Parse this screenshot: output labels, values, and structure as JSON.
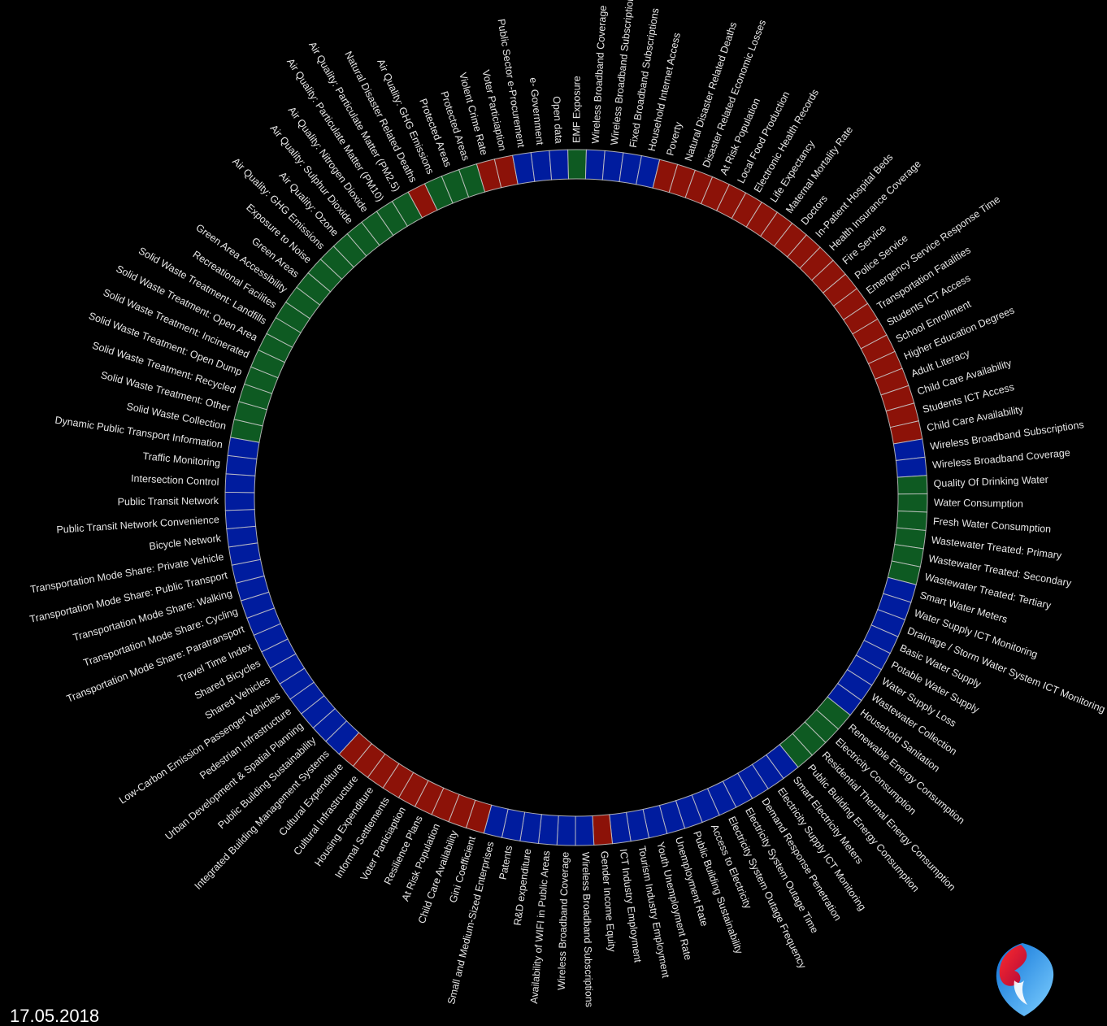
{
  "date": "17.05.2018",
  "colors": {
    "red": "#8c1208",
    "blue": "#001c9e",
    "green": "#0e5a22",
    "separator": "#c8c8c8",
    "background": "#000000"
  },
  "logo": {
    "name": "swisscom-logo"
  },
  "segments": [
    {
      "label": "Violent Crime Rate",
      "c": "red"
    },
    {
      "label": "Voter Particiaption",
      "c": "red"
    },
    {
      "label": "Public Sector e-Procurement",
      "c": "blue"
    },
    {
      "label": "e- Government",
      "c": "blue"
    },
    {
      "label": "Open data",
      "c": "blue"
    },
    {
      "label": "EMF Exposure",
      "c": "green"
    },
    {
      "label": "Wireless Broadband Coverage",
      "c": "blue"
    },
    {
      "label": "Wireless Broadband Subscriptions",
      "c": "blue"
    },
    {
      "label": "Fixed Broadband Subscriptions",
      "c": "blue"
    },
    {
      "label": "Household Internet Access",
      "c": "blue"
    },
    {
      "label": "Poverty",
      "c": "red"
    },
    {
      "label": "Natural Disaster Related Deaths",
      "c": "red"
    },
    {
      "label": "Disaster Related Economic Losses",
      "c": "red"
    },
    {
      "label": "At Risk Population",
      "c": "red"
    },
    {
      "label": "Local Food Production",
      "c": "red"
    },
    {
      "label": "Electronic Health Records",
      "c": "red"
    },
    {
      "label": "Life Expectancy",
      "c": "red"
    },
    {
      "label": "Maternal Mortality Rate",
      "c": "red"
    },
    {
      "label": "Doctors",
      "c": "red"
    },
    {
      "label": "In-Patient Hospital Beds",
      "c": "red"
    },
    {
      "label": "Health Insurance Coverage",
      "c": "red"
    },
    {
      "label": "Fire Service",
      "c": "red"
    },
    {
      "label": "Police Service",
      "c": "red"
    },
    {
      "label": "Emergency Service Response Time",
      "c": "red"
    },
    {
      "label": "Transportation Fatalities",
      "c": "red"
    },
    {
      "label": "Students ICT Access",
      "c": "red"
    },
    {
      "label": "School Enrollment",
      "c": "red"
    },
    {
      "label": "Higher Education Degrees",
      "c": "red"
    },
    {
      "label": "Adult Literacy",
      "c": "red"
    },
    {
      "label": "Child Care Availability",
      "c": "red"
    },
    {
      "label": "Students ICT Access",
      "c": "red"
    },
    {
      "label": "Child Care Availability",
      "c": "red"
    },
    {
      "label": "Wireless Broadband Subscriptions",
      "c": "blue"
    },
    {
      "label": "Wireless Broadband Coverage",
      "c": "blue"
    },
    {
      "label": "Quality Of Drinking Water",
      "c": "green"
    },
    {
      "label": "Water Consumption",
      "c": "green"
    },
    {
      "label": "Fresh Water Consumption",
      "c": "green"
    },
    {
      "label": "Wastewater Treated: Primary",
      "c": "green"
    },
    {
      "label": "Wastewater Treated: Secondary",
      "c": "green"
    },
    {
      "label": "Wastewater Treated: Tertiary",
      "c": "green"
    },
    {
      "label": "Smart Water Meters",
      "c": "blue"
    },
    {
      "label": "Water Supply ICT Monitoring",
      "c": "blue"
    },
    {
      "label": "Drainage / Storm Water System ICT Monitoring",
      "c": "blue"
    },
    {
      "label": "Basic Water Supply",
      "c": "blue"
    },
    {
      "label": "Potable Water Supply",
      "c": "blue"
    },
    {
      "label": "Water Supply Loss",
      "c": "blue"
    },
    {
      "label": "Wastewater Collection",
      "c": "blue"
    },
    {
      "label": "Household Sanitation",
      "c": "blue"
    },
    {
      "label": "Renewable Energy Consumption",
      "c": "green"
    },
    {
      "label": "Electricity Consumption",
      "c": "green"
    },
    {
      "label": "Residential Thermal Energy Consumption",
      "c": "green"
    },
    {
      "label": "Public Building Energy Consumption",
      "c": "green"
    },
    {
      "label": "Smart Electricity Meters",
      "c": "blue"
    },
    {
      "label": "Electricity Supply ICT Monitoring",
      "c": "blue"
    },
    {
      "label": "Demand Response Penetration",
      "c": "blue"
    },
    {
      "label": "Electricity System Outage Time",
      "c": "blue"
    },
    {
      "label": "Electricity System Outage Frequency",
      "c": "blue"
    },
    {
      "label": "Access to Electricity",
      "c": "blue"
    },
    {
      "label": "Public Building Sustainability",
      "c": "blue"
    },
    {
      "label": "Unemployment Rate",
      "c": "blue"
    },
    {
      "label": "Youth Unemployment Rate",
      "c": "blue"
    },
    {
      "label": "Tourism Industry Employment",
      "c": "blue"
    },
    {
      "label": "ICT Industry Employment",
      "c": "blue"
    },
    {
      "label": "Gender Income Equity",
      "c": "red"
    },
    {
      "label": "Wireless Broadband Subscriptions",
      "c": "blue"
    },
    {
      "label": "Wireless Broadband Coverage",
      "c": "blue"
    },
    {
      "label": "Availability of WIFI in Public Areas",
      "c": "blue"
    },
    {
      "label": "R&D expenditure",
      "c": "blue"
    },
    {
      "label": "Patents",
      "c": "blue"
    },
    {
      "label": "Small and Medium-Sized Enterprises",
      "c": "blue"
    },
    {
      "label": "Gini Coefficient",
      "c": "red"
    },
    {
      "label": "Child Care Availability",
      "c": "red"
    },
    {
      "label": "At Risk Population",
      "c": "red"
    },
    {
      "label": "Resilience Plans",
      "c": "red"
    },
    {
      "label": "Voter Particiaption",
      "c": "red"
    },
    {
      "label": "Informal Settlements",
      "c": "red"
    },
    {
      "label": "Housing Expenditure",
      "c": "red"
    },
    {
      "label": "Cultural Infrastructure",
      "c": "red"
    },
    {
      "label": "Cultural Expenditure",
      "c": "red"
    },
    {
      "label": "Integrated Building Management Systems",
      "c": "blue"
    },
    {
      "label": "Public Building Sustainability",
      "c": "blue"
    },
    {
      "label": "Urban Development & Spatial Planning",
      "c": "blue"
    },
    {
      "label": "Pedestrian Infrastructure",
      "c": "blue"
    },
    {
      "label": "Low-Carbon Emission Passenger Vehicles",
      "c": "blue"
    },
    {
      "label": "Shared Vehicles",
      "c": "blue"
    },
    {
      "label": "Shared Bicycles",
      "c": "blue"
    },
    {
      "label": "Travel Time Index",
      "c": "blue"
    },
    {
      "label": "Transportation Mode Share: Paratransport",
      "c": "blue"
    },
    {
      "label": "Transportation Mode Share: Cycling",
      "c": "blue"
    },
    {
      "label": "Transportation Mode Share: Walking",
      "c": "blue"
    },
    {
      "label": "Transportation Mode Share: Public Transport",
      "c": "blue"
    },
    {
      "label": "Transportation Mode Share: Private Vehicle",
      "c": "blue"
    },
    {
      "label": "Bicycle Network",
      "c": "blue"
    },
    {
      "label": "Public Transit Network Convenience",
      "c": "blue"
    },
    {
      "label": "Public Transit Network",
      "c": "blue"
    },
    {
      "label": "Intersection Control",
      "c": "blue"
    },
    {
      "label": "Traffic Monitoring",
      "c": "blue"
    },
    {
      "label": "Dynamic Public Transport Information",
      "c": "blue"
    },
    {
      "label": "Solid Waste Collection",
      "c": "green"
    },
    {
      "label": "Solid Waste Treatment: Other",
      "c": "green"
    },
    {
      "label": "Solid Waste Treatment: Recycled",
      "c": "green"
    },
    {
      "label": "Solid Waste Treatment: Open Dump",
      "c": "green"
    },
    {
      "label": "Solid Waste Treatment: Incinerated",
      "c": "green"
    },
    {
      "label": "Solid Waste Treatment: Open Area",
      "c": "green"
    },
    {
      "label": "Solid Waste Treatment: Landfills",
      "c": "green"
    },
    {
      "label": "Recreational Facilites",
      "c": "green"
    },
    {
      "label": "Green Area Accessibility",
      "c": "green"
    },
    {
      "label": "Green Areas",
      "c": "green"
    },
    {
      "label": "Exposure to Noise",
      "c": "green"
    },
    {
      "label": "Air Quality: GHG Emissions",
      "c": "green"
    },
    {
      "label": "Air Quality: Ozone",
      "c": "green"
    },
    {
      "label": "Air Quality: Sulphur Dioxide",
      "c": "green"
    },
    {
      "label": "Air Quality: Nitrogen Dioxide",
      "c": "green"
    },
    {
      "label": "Air Quality: Particulate Matter (PM10)",
      "c": "green"
    },
    {
      "label": "Air Quality: Particulate Matter (PM2.5)",
      "c": "green"
    },
    {
      "label": "Natural Disaster Related Deaths",
      "c": "red"
    },
    {
      "label": "Air Quality: GHG Emissions",
      "c": "green"
    },
    {
      "label": "Protected Areas",
      "c": "green"
    },
    {
      "label": "Protected Areas",
      "c": "green"
    }
  ]
}
